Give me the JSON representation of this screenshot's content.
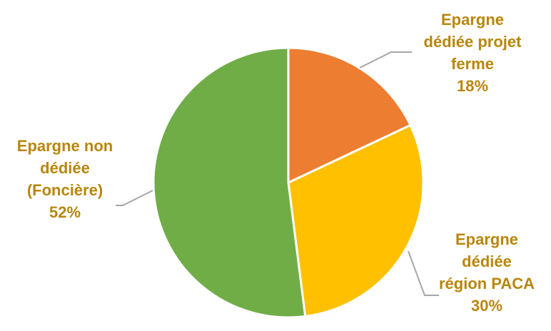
{
  "chart_data": {
    "type": "pie",
    "slices": [
      {
        "label_lines": [
          "Epargne",
          "dédiée projet",
          "ferme"
        ],
        "percent_text": "18%",
        "value": 18,
        "color": "#ED7D31"
      },
      {
        "label_lines": [
          "Epargne",
          "dédiée",
          "région PACA"
        ],
        "percent_text": "30%",
        "value": 30,
        "color": "#FFC000"
      },
      {
        "label_lines": [
          "Epargne non",
          "dédiée",
          "(Foncière)"
        ],
        "percent_text": "52%",
        "value": 52,
        "color": "#70AD47"
      }
    ],
    "label_color": "#B8860B",
    "leader_line_color": "#A6A6A6",
    "slice_border_color": "#FFFFFF",
    "start_angle_deg": 0,
    "direction": "clockwise"
  }
}
